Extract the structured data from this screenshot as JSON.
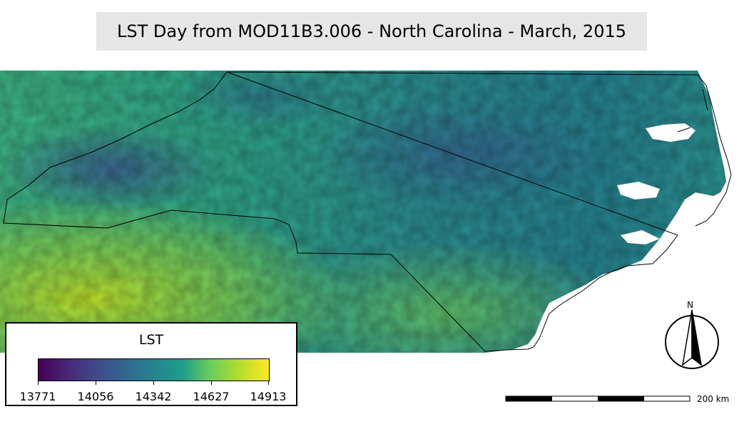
{
  "title": "LST Day from MOD11B3.006 - North Carolina - March, 2015",
  "legend": {
    "title": "LST",
    "min": 13771,
    "max": 14913,
    "ticks": [
      "13771",
      "14056",
      "14342",
      "14627",
      "14913"
    ],
    "colormap": [
      "#440154",
      "#482777",
      "#3f4a8a",
      "#31678e",
      "#26838f",
      "#1f9d8a",
      "#6cce5a",
      "#b6de2b",
      "#fee825"
    ]
  },
  "scale_bar": {
    "label": "200 km"
  },
  "north_arrow": {
    "label": "N"
  }
}
